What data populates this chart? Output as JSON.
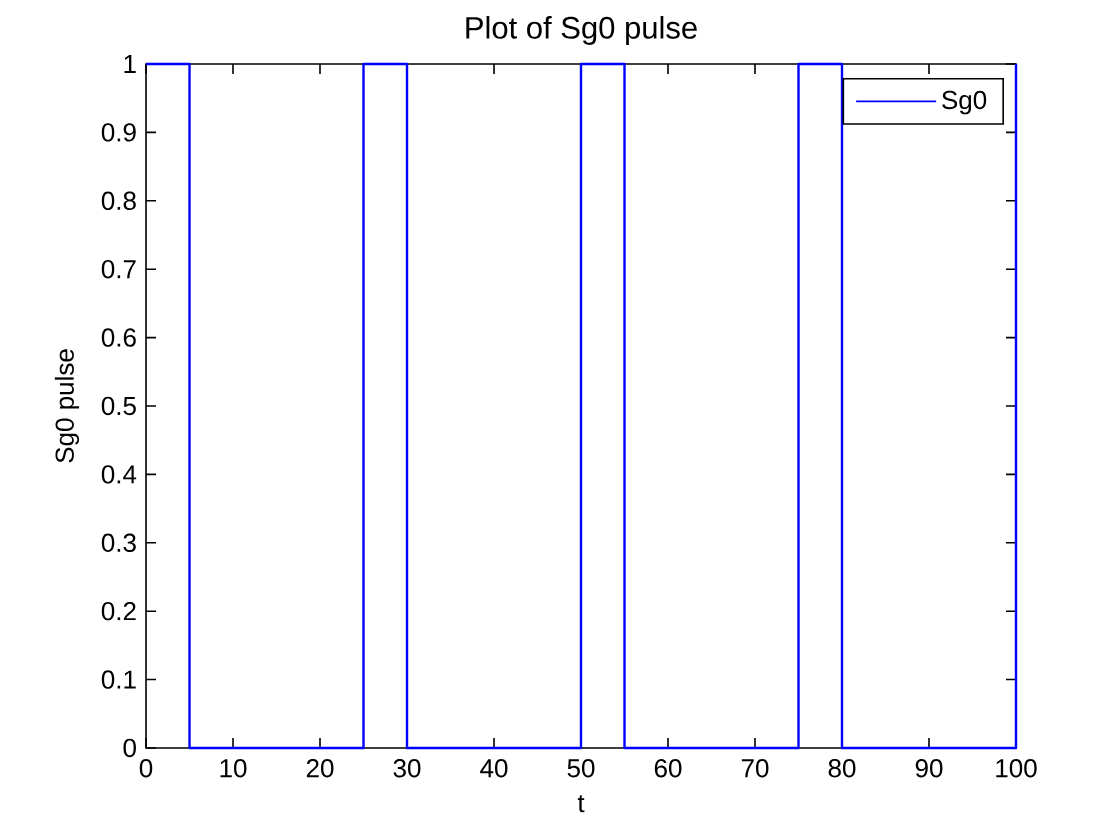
{
  "chart_data": {
    "type": "line",
    "title": "Plot of Sg0 pulse",
    "xlabel": "t",
    "ylabel": "Sg0 pulse",
    "x": [
      0,
      5,
      5,
      25,
      25,
      30,
      30,
      50,
      50,
      55,
      55,
      75,
      75,
      80,
      80,
      100,
      100
    ],
    "series": [
      {
        "name": "Sg0",
        "color": "#0000ff",
        "values": [
          1,
          1,
          0,
          0,
          1,
          1,
          0,
          0,
          1,
          1,
          0,
          0,
          1,
          1,
          0,
          0,
          1
        ]
      }
    ],
    "xlim": [
      0,
      100
    ],
    "ylim": [
      0,
      1
    ],
    "xticks": [
      0,
      10,
      20,
      30,
      40,
      50,
      60,
      70,
      80,
      90,
      100
    ],
    "yticks": [
      0,
      0.1,
      0.2,
      0.3,
      0.4,
      0.5,
      0.6,
      0.7,
      0.8,
      0.9,
      1
    ],
    "grid": false,
    "legend": "top right",
    "marker": "none",
    "line_style": "solid"
  }
}
